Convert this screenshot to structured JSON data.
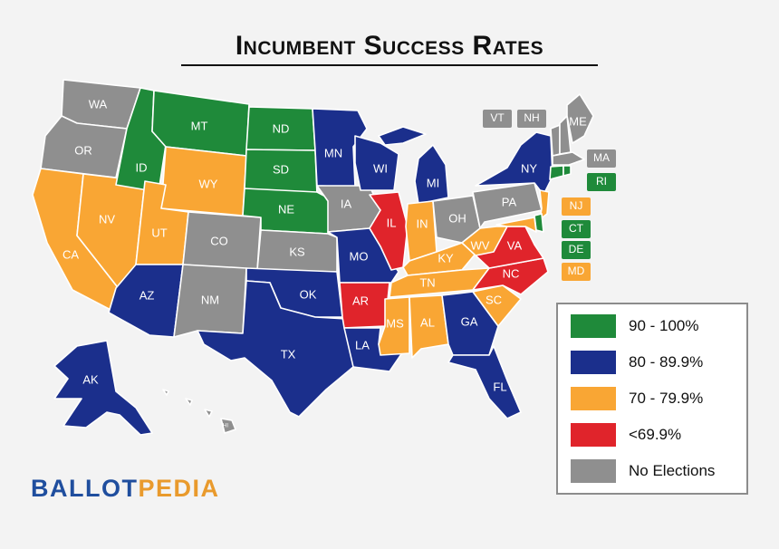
{
  "title": "Incumbent Success Rates",
  "colors": {
    "green": "#1f8a3a",
    "blue": "#1b2f8c",
    "orange": "#f9a634",
    "red": "#e0242b",
    "gray": "#8f8f8f"
  },
  "legend": [
    {
      "label": "90 - 100%",
      "color": "#1f8a3a"
    },
    {
      "label": "80 - 89.9%",
      "color": "#1b2f8c"
    },
    {
      "label": "70 - 79.9%",
      "color": "#f9a634"
    },
    {
      "label": "<69.9%",
      "color": "#e0242b"
    },
    {
      "label": "No Elections",
      "color": "#8f8f8f"
    }
  ],
  "states": [
    {
      "code": "WA",
      "category": "No Elections"
    },
    {
      "code": "OR",
      "category": "No Elections"
    },
    {
      "code": "CA",
      "category": "70 - 79.9%"
    },
    {
      "code": "NV",
      "category": "70 - 79.9%"
    },
    {
      "code": "ID",
      "category": "90 - 100%"
    },
    {
      "code": "MT",
      "category": "90 - 100%"
    },
    {
      "code": "WY",
      "category": "70 - 79.9%"
    },
    {
      "code": "UT",
      "category": "70 - 79.9%"
    },
    {
      "code": "AZ",
      "category": "80 - 89.9%"
    },
    {
      "code": "CO",
      "category": "No Elections"
    },
    {
      "code": "NM",
      "category": "No Elections"
    },
    {
      "code": "ND",
      "category": "90 - 100%"
    },
    {
      "code": "SD",
      "category": "90 - 100%"
    },
    {
      "code": "NE",
      "category": "90 - 100%"
    },
    {
      "code": "KS",
      "category": "No Elections"
    },
    {
      "code": "OK",
      "category": "80 - 89.9%"
    },
    {
      "code": "TX",
      "category": "80 - 89.9%"
    },
    {
      "code": "MN",
      "category": "80 - 89.9%"
    },
    {
      "code": "IA",
      "category": "No Elections"
    },
    {
      "code": "MO",
      "category": "80 - 89.9%"
    },
    {
      "code": "AR",
      "category": "<69.9%"
    },
    {
      "code": "LA",
      "category": "80 - 89.9%"
    },
    {
      "code": "WI",
      "category": "80 - 89.9%"
    },
    {
      "code": "IL",
      "category": "<69.9%"
    },
    {
      "code": "MI",
      "category": "80 - 89.9%"
    },
    {
      "code": "IN",
      "category": "70 - 79.9%"
    },
    {
      "code": "OH",
      "category": "No Elections"
    },
    {
      "code": "KY",
      "category": "70 - 79.9%"
    },
    {
      "code": "TN",
      "category": "70 - 79.9%"
    },
    {
      "code": "MS",
      "category": "70 - 79.9%"
    },
    {
      "code": "AL",
      "category": "70 - 79.9%"
    },
    {
      "code": "GA",
      "category": "80 - 89.9%"
    },
    {
      "code": "FL",
      "category": "80 - 89.9%"
    },
    {
      "code": "SC",
      "category": "70 - 79.9%"
    },
    {
      "code": "NC",
      "category": "<69.9%"
    },
    {
      "code": "VA",
      "category": "<69.9%"
    },
    {
      "code": "WV",
      "category": "70 - 79.9%"
    },
    {
      "code": "PA",
      "category": "No Elections"
    },
    {
      "code": "NY",
      "category": "80 - 89.9%"
    },
    {
      "code": "ME",
      "category": "No Elections"
    },
    {
      "code": "AK",
      "category": "80 - 89.9%"
    },
    {
      "code": "HI",
      "category": "No Elections"
    }
  ],
  "small_states": [
    {
      "code": "VT",
      "category": "No Elections"
    },
    {
      "code": "NH",
      "category": "No Elections"
    },
    {
      "code": "MA",
      "category": "No Elections"
    },
    {
      "code": "RI",
      "category": "90 - 100%"
    },
    {
      "code": "NJ",
      "category": "70 - 79.9%"
    },
    {
      "code": "CT",
      "category": "90 - 100%"
    },
    {
      "code": "DE",
      "category": "90 - 100%"
    },
    {
      "code": "MD",
      "category": "70 - 79.9%"
    }
  ],
  "logo": {
    "part1": "BALLOT",
    "part2": "PEDIA"
  }
}
